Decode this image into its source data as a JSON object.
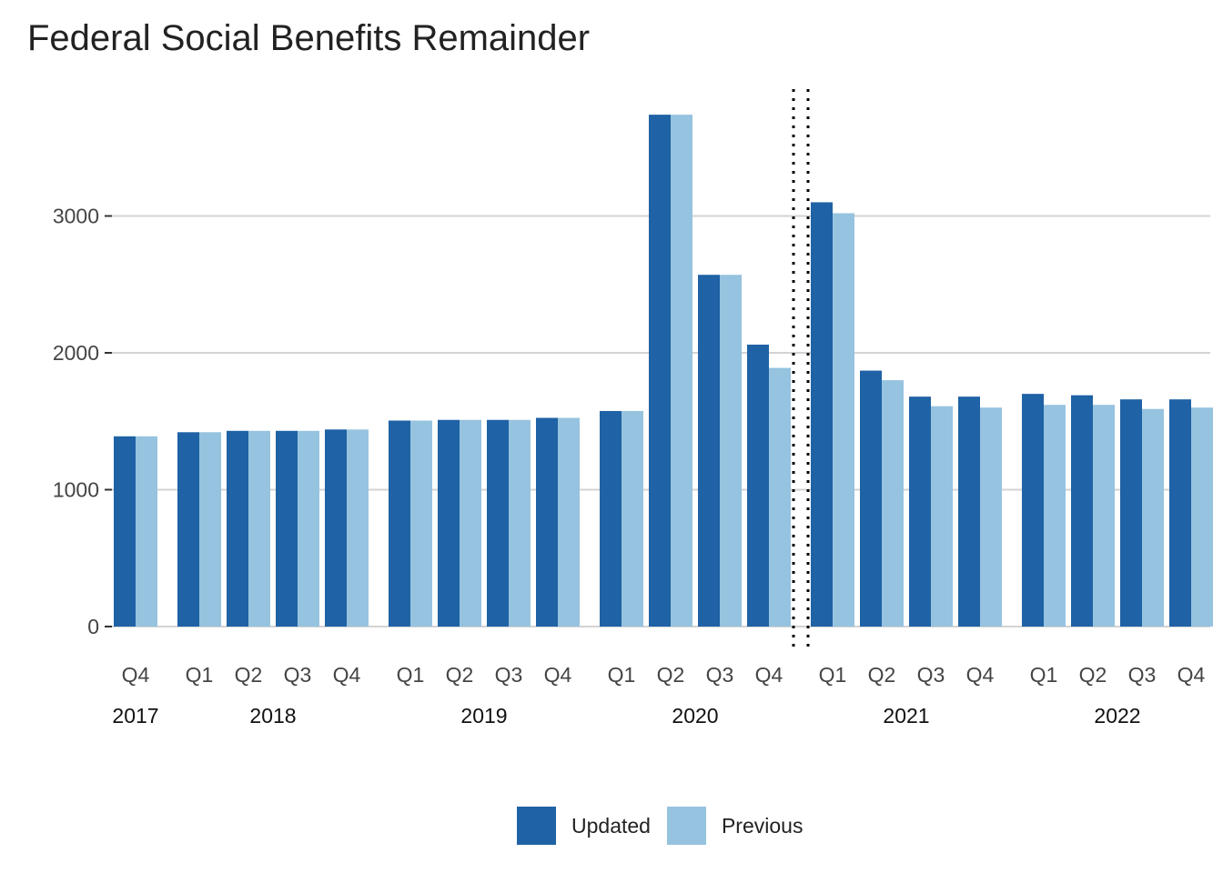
{
  "chart_data": {
    "type": "bar",
    "title": "Federal Social Benefits Remainder",
    "xlabel": "",
    "ylabel": "",
    "ylim": [
      0,
      3900
    ],
    "yticks": [
      0,
      1000,
      2000,
      3000
    ],
    "grid": true,
    "legend_position": "bottom",
    "colors": {
      "Updated": "#1f62a5",
      "Previous": "#96c3df",
      "grid": "#d3d3d3",
      "separator": "#000000"
    },
    "groups": [
      {
        "year": "2017",
        "quarters": [
          "Q4"
        ]
      },
      {
        "year": "2018",
        "quarters": [
          "Q1",
          "Q2",
          "Q3",
          "Q4"
        ]
      },
      {
        "year": "2019",
        "quarters": [
          "Q1",
          "Q2",
          "Q3",
          "Q4"
        ]
      },
      {
        "year": "2020",
        "quarters": [
          "Q1",
          "Q2",
          "Q3",
          "Q4"
        ]
      },
      {
        "year": "2021",
        "quarters": [
          "Q1",
          "Q2",
          "Q3",
          "Q4"
        ]
      },
      {
        "year": "2022",
        "quarters": [
          "Q1",
          "Q2",
          "Q3",
          "Q4"
        ]
      }
    ],
    "separator_after": "2020 Q4",
    "series": [
      {
        "name": "Updated",
        "values": [
          1390,
          1420,
          1430,
          1430,
          1440,
          1505,
          1510,
          1510,
          1525,
          1575,
          3740,
          2570,
          2060,
          3100,
          1870,
          1680,
          1680,
          1700,
          1690,
          1660,
          1660
        ]
      },
      {
        "name": "Previous",
        "values": [
          1390,
          1420,
          1430,
          1430,
          1440,
          1505,
          1510,
          1510,
          1525,
          1575,
          3740,
          2570,
          1890,
          3020,
          1800,
          1610,
          1600,
          1620,
          1620,
          1590,
          1600
        ]
      }
    ]
  }
}
